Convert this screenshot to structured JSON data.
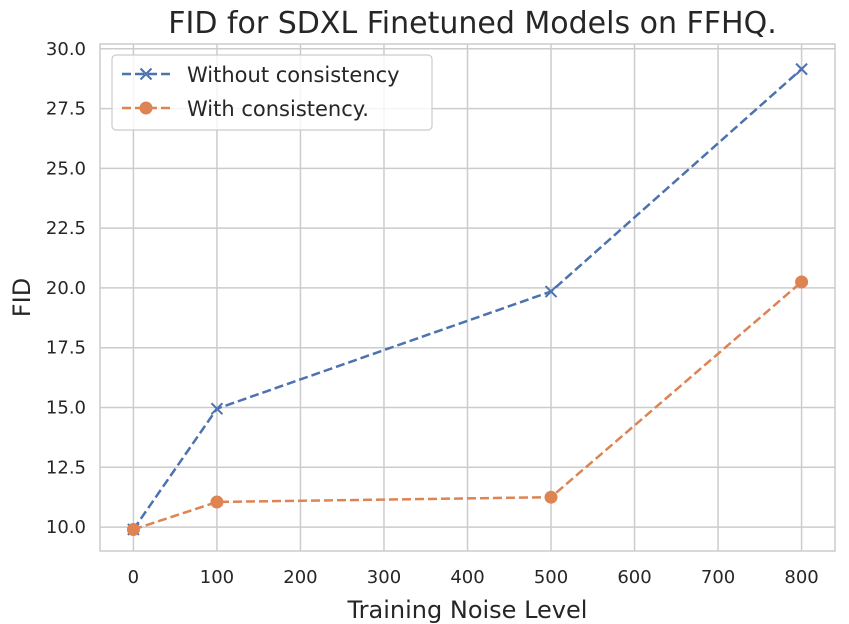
{
  "chart_data": {
    "type": "line",
    "title": "FID for SDXL Finetuned Models on FFHQ.",
    "xlabel": "Training Noise Level",
    "ylabel": "FID",
    "xlim": [
      -40,
      840
    ],
    "ylim": [
      9.0,
      30.2
    ],
    "xticks": [
      0,
      100,
      200,
      300,
      400,
      500,
      600,
      700,
      800
    ],
    "yticks": [
      10.0,
      12.5,
      15.0,
      17.5,
      20.0,
      22.5,
      25.0,
      27.5,
      30.0
    ],
    "xtick_labels": [
      "0",
      "100",
      "200",
      "300",
      "400",
      "500",
      "600",
      "700",
      "800"
    ],
    "ytick_labels": [
      "10.0",
      "12.5",
      "15.0",
      "17.5",
      "20.0",
      "22.5",
      "25.0",
      "27.5",
      "30.0"
    ],
    "grid": true,
    "legend_position": "top-left",
    "series": [
      {
        "name": "Without consistency",
        "color": "#4c72b0",
        "marker": "x",
        "linestyle": "dashed",
        "x": [
          0,
          100,
          500,
          800
        ],
        "y": [
          9.9,
          14.95,
          19.85,
          29.15
        ]
      },
      {
        "name": "With consistency.",
        "color": "#dd8452",
        "marker": "circle",
        "linestyle": "dashed",
        "x": [
          0,
          100,
          500,
          800
        ],
        "y": [
          9.9,
          11.05,
          11.25,
          20.25
        ]
      }
    ]
  }
}
